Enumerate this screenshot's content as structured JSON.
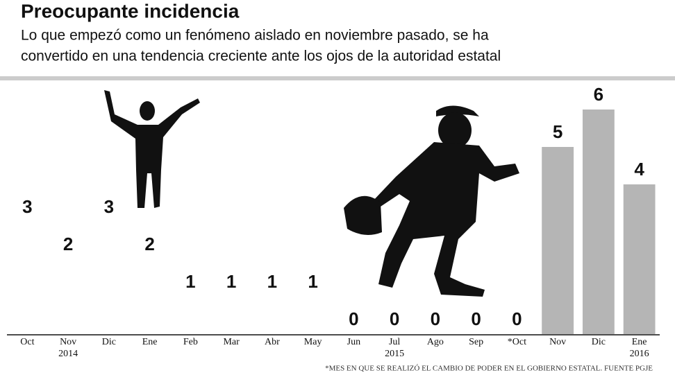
{
  "chart_data": {
    "type": "bar",
    "title": "Preocupante incidencia",
    "subtitle": [
      "Lo que empezó como un fenómeno aislado en noviembre pasado, se ha",
      "convertido en una tendencia creciente ante los ojos de la autoridad estatal"
    ],
    "categories": [
      "Oct",
      "Nov",
      "Dic",
      "Ene",
      "Feb",
      "Mar",
      "Abr",
      "May",
      "Jun",
      "Jul",
      "Ago",
      "Sep",
      "*Oct",
      "Nov",
      "Dic",
      "Ene"
    ],
    "year_labels": [
      null,
      "2014",
      null,
      null,
      null,
      null,
      null,
      null,
      null,
      "2015",
      null,
      null,
      null,
      null,
      null,
      "2016"
    ],
    "values": [
      3,
      2,
      3,
      2,
      1,
      1,
      1,
      1,
      0,
      0,
      0,
      0,
      0,
      5,
      6,
      4
    ],
    "colors": [
      null,
      null,
      null,
      null,
      null,
      null,
      null,
      null,
      null,
      null,
      null,
      null,
      null,
      "#b5b5b5",
      "#b5b5b5",
      "#b5b5b5"
    ],
    "note": "*MES EN QUE SE REALIZÓ EL CAMBIO DE PODER EN EL GOBIERNO ESTATAL. FUENTE PGJE"
  }
}
